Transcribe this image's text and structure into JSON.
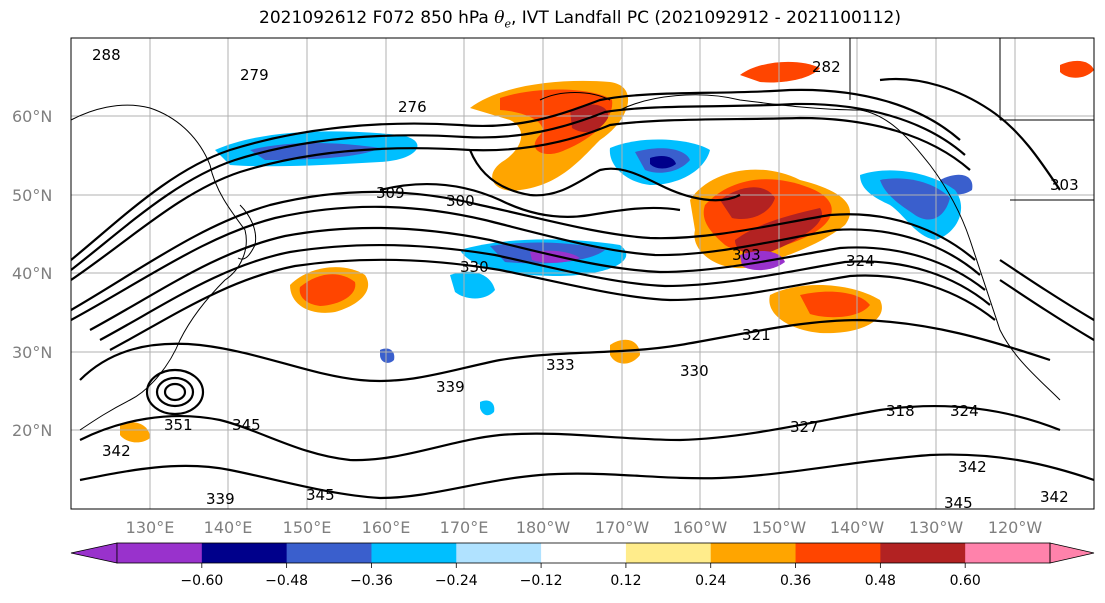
{
  "title": {
    "prefix": "2021092612 F072 850 hPa ",
    "symbol": "θ",
    "subscript": "e",
    "suffix": ", IVT Landfall PC (2021092912 - 2021100112)"
  },
  "map": {
    "extent_lon": [
      120,
      250
    ],
    "extent_lat": [
      10,
      70
    ],
    "gridlines": true,
    "lat_labels": [
      "60°N",
      "50°N",
      "40°N",
      "30°N",
      "20°N"
    ],
    "lat_values": [
      60,
      50,
      40,
      30,
      20
    ],
    "lon_labels": [
      "130°E",
      "140°E",
      "150°E",
      "160°E",
      "170°E",
      "180°W",
      "170°W",
      "160°W",
      "150°W",
      "140°W",
      "130°W",
      "120°W"
    ],
    "lon_values": [
      130,
      140,
      150,
      160,
      170,
      180,
      190,
      200,
      210,
      220,
      230,
      240
    ],
    "contour_labels": [
      "288",
      "279",
      "276",
      "309",
      "300",
      "309",
      "333",
      "282",
      "303",
      "324",
      "321",
      "330",
      "339",
      "333",
      "345",
      "351",
      "342",
      "339",
      "345",
      "318",
      "324",
      "327",
      "342",
      "345",
      "342",
      "303",
      "330"
    ]
  },
  "colorbar": {
    "colors": [
      "#9932CC",
      "#00008B",
      "#3A5FCD",
      "#00BFFF",
      "#B0E2FF",
      "#FFFFFF",
      "#FFEC8B",
      "#FFA500",
      "#FF4500",
      "#B22222",
      "#FF82AB"
    ],
    "tick_labels": [
      "−0.60",
      "−0.48",
      "−0.36",
      "−0.24",
      "−0.12",
      "0.12",
      "0.24",
      "0.36",
      "0.48",
      "0.60"
    ],
    "tick_values": [
      -0.6,
      -0.48,
      -0.36,
      -0.24,
      -0.12,
      0.12,
      0.24,
      0.36,
      0.48,
      0.6
    ]
  }
}
